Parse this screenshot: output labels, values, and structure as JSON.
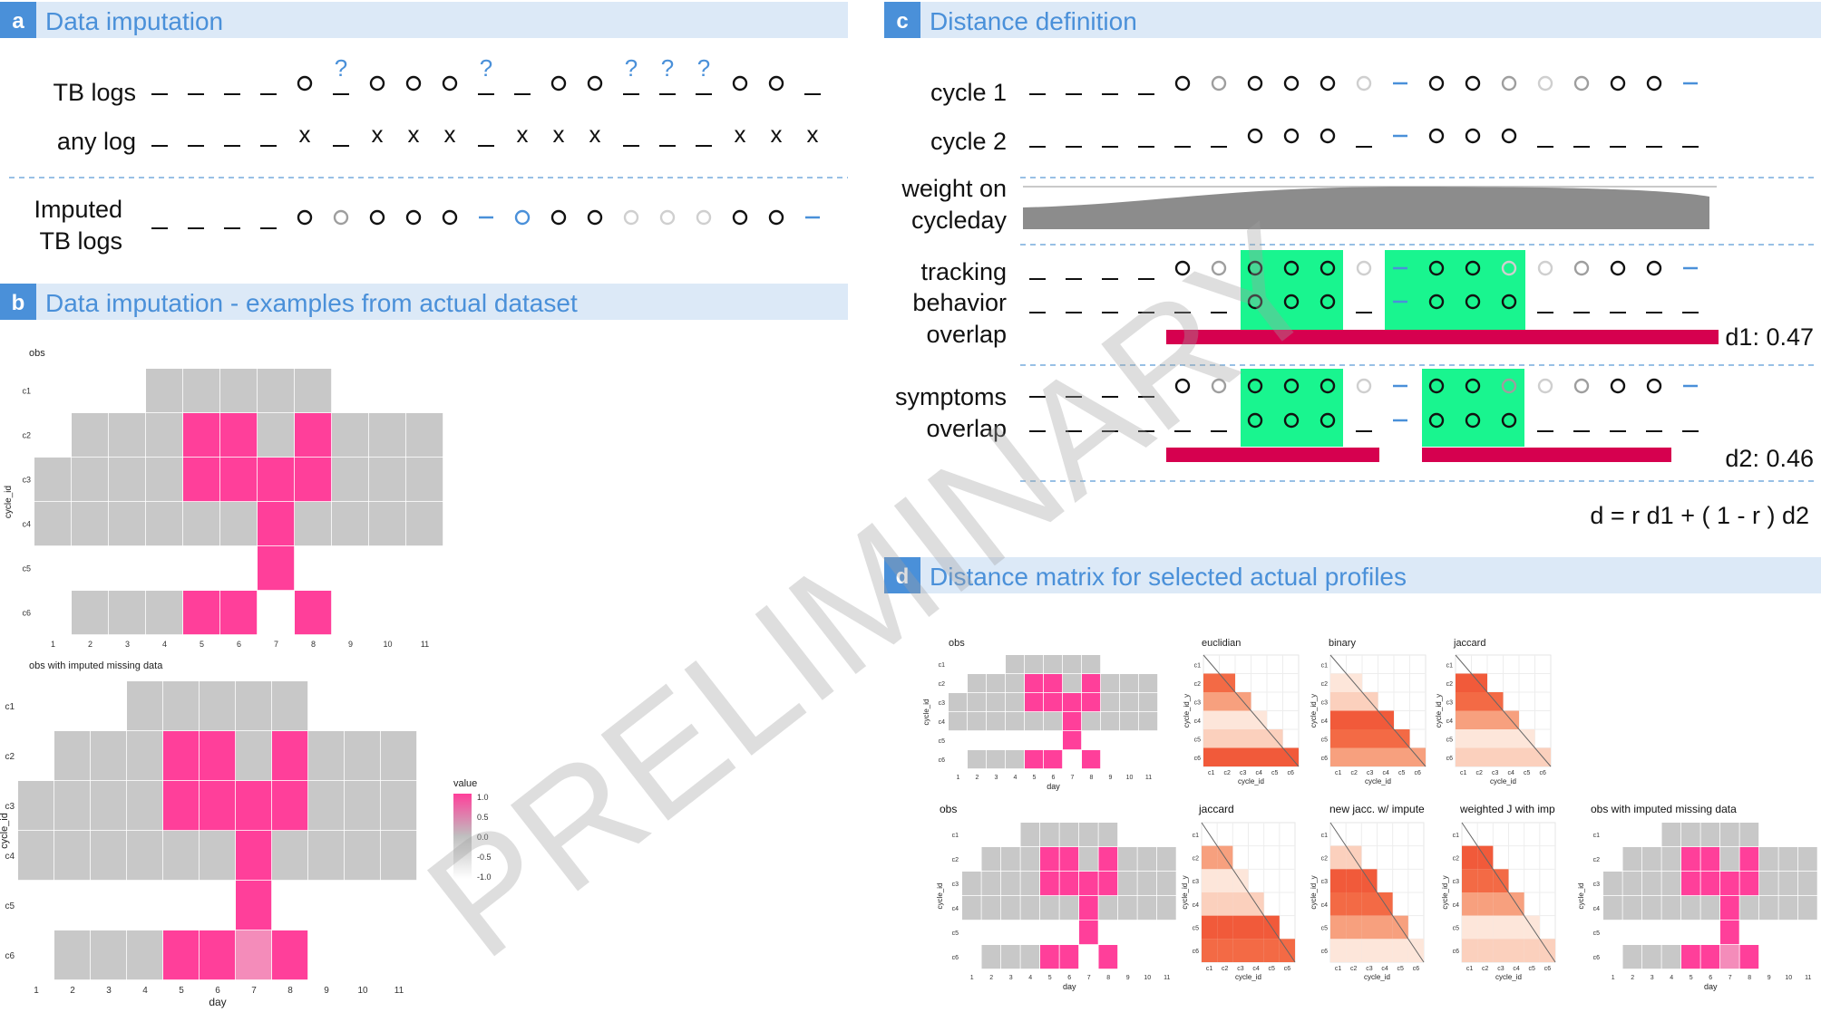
{
  "panels": {
    "a": {
      "badge": "a",
      "title": "Data imputation"
    },
    "b": {
      "badge": "b",
      "title": "Data imputation - examples from actual dataset"
    },
    "c": {
      "badge": "c",
      "title": "Distance definition"
    },
    "d": {
      "badge": "d",
      "title": "Distance matrix for selected actual profiles"
    }
  },
  "panel_a": {
    "row1_label": "TB logs",
    "row2_label": "any log",
    "row3_label_line1": "Imputed",
    "row3_label_line2": "TB logs",
    "question_mark": "?",
    "tb_symbols": "____o_ooo__oo___oo_",
    "questions": [
      5,
      9,
      13,
      14,
      15
    ],
    "any_symbols": "____x_xxx_xxx___xxx",
    "imputed_symbols": "____ooooo-oooooooo-",
    "imputed_styles": "____BLBBBVSBBVVVBBS"
  },
  "panel_c": {
    "cycle1_label": "cycle 1",
    "cycle2_label": "cycle 2",
    "weight_line1": "weight on",
    "weight_line2": "cycleday",
    "tracking_line1": "tracking",
    "tracking_line2": "behavior",
    "tracking_line3": "overlap",
    "symptoms_line1": "symptoms",
    "symptoms_line2": "overlap",
    "d1": "d1: 0.47",
    "d2": "d2: 0.46",
    "formula": "d = r d1 + ( 1 - r ) d2",
    "cycle1_symbols": "____ooooooo-ooooooooo-",
    "cycle1_styles": "____BLBBBVSBBVVLBBS",
    "cycle2_symbols": "______ooo_-ooo_____",
    "cycle2_styles": "______BBB_SBBB_____",
    "sym1_symbols": "____oooooo-ooooooo-",
    "sym1_styles": "____BLBBBVSBBLVLBBS",
    "sym2_symbols": "______ooo_-ooo_____",
    "sym2_styles": "______BBB_SBBB_____"
  },
  "heatmaps": {
    "obs_title": "obs",
    "imputed_title": "obs with imputed missing data",
    "xlabel": "day",
    "ylabel": "cycle_id",
    "rows": [
      "c1",
      "c2",
      "c3",
      "c4",
      "c5",
      "c6"
    ],
    "days": [
      "1",
      "2",
      "3",
      "4",
      "5",
      "6",
      "7",
      "8",
      "9",
      "10",
      "11"
    ],
    "obs_grid": [
      "...GGGGG...",
      ".GGGPPGPGGG",
      "GGGGPPPPGGG",
      "GGGGGGPGGGG",
      "......P....",
      ".GGGPP.P..."
    ],
    "imputed_grid": [
      "...GGGGG...",
      ".GGGPPGPGGG",
      "GGGGPPPPGGG",
      "GGGGGGPGGGG",
      "......P....",
      ".GGGPPLP..."
    ],
    "legend_title": "value",
    "legend_ticks": [
      "1.0",
      "0.5",
      "0.0",
      "-0.5",
      "-1.0"
    ]
  },
  "panel_d": {
    "top_titles": [
      "obs",
      "euclidian",
      "binary",
      "jaccard"
    ],
    "bottom_titles": [
      "obs",
      "jaccard",
      "new jacc. w/ impute",
      "weighted J with imp",
      "obs with imputed missing data"
    ],
    "matrix_xlabel": "cycle_id",
    "matrix_ylabel": "cycle_id_y",
    "heat_xlabel": "day",
    "heat_ylabel": "cycle_id"
  },
  "watermark": "PRELIMINARY",
  "colors": {
    "header_bg": "#dce9f7",
    "badge": "#4a90d9",
    "accent_blue": "#4a90d9",
    "grey_cell": "#c8c8c8",
    "pink_cell": "#ff3f9a",
    "light_pink_cell": "#f48cba",
    "overlap_green": "#19f58f",
    "overlap_bar": "#d6004f",
    "weight_fill": "#8c8c8c"
  }
}
